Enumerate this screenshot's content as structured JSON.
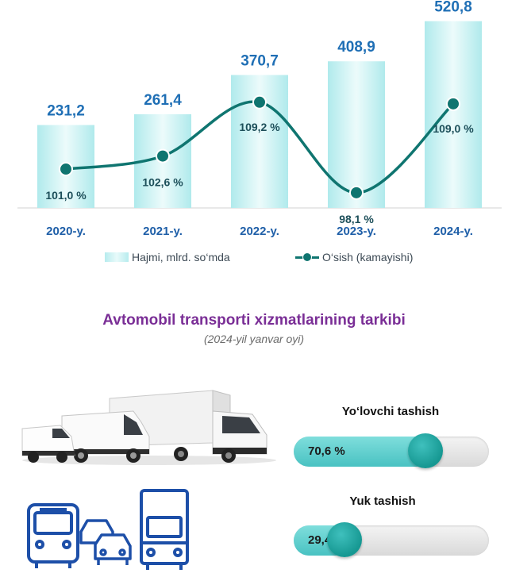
{
  "chart_data": {
    "type": "bar",
    "categories": [
      "2020-y.",
      "2021-y.",
      "2022-y.",
      "2023-y.",
      "2024-y."
    ],
    "series": [
      {
        "name": "Hajmi, mlrd. so‘mda",
        "type": "bar",
        "values": [
          231.2,
          261.4,
          370.7,
          408.9,
          520.8
        ],
        "labels": [
          "231,2",
          "261,4",
          "370,7",
          "408,9",
          "520,8"
        ]
      },
      {
        "name": "O‘sish (kamayishi)",
        "type": "line",
        "values": [
          101.0,
          102.6,
          109.2,
          98.1,
          109.0
        ],
        "labels": [
          "101,0 %",
          "102,6 %",
          "109,2 %",
          "98,1 %",
          "109,0 %"
        ]
      }
    ],
    "ylim": [
      0,
      540
    ],
    "growth_range": [
      94,
      112
    ],
    "grid": false,
    "legend_position": "bottom",
    "colors": {
      "bar": "#bff0f0",
      "line": "#0f7570",
      "value_label": "#1f6fb5"
    }
  },
  "legend": {
    "bar_label": "Hajmi, mlrd. so‘mda",
    "line_label": "O‘sish (kamayishi)"
  },
  "section": {
    "title": "Avtomobil transporti xizmatlarining tarkibi",
    "subtitle": "(2024-yil yanvar oyi)"
  },
  "shares": [
    {
      "label": "Yo‘lovchi tashish",
      "value": 70.6,
      "text": "70,6 %"
    },
    {
      "label": "Yuk tashish",
      "value": 29.4,
      "text": "29,4 %"
    }
  ],
  "icons": [
    "vehicles-photo",
    "bus-icon",
    "cars-icon",
    "truck-icon"
  ]
}
